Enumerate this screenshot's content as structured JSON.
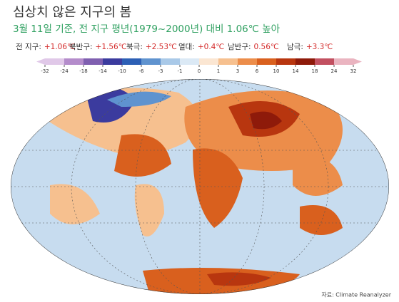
{
  "header": {
    "title": "심상치 않은 지구의 봄",
    "subtitle": "3월 11일 기준, 전 지구 평년(1979~2000년) 대비 1.06℃ 높아"
  },
  "stats": [
    {
      "label": "전 지구:",
      "value": "+1.06℃"
    },
    {
      "label": "북반구:",
      "value": "+1.56℃"
    },
    {
      "label": "북극:",
      "value": "+2.53℃"
    },
    {
      "label": "열대:",
      "value": "+0.4℃"
    },
    {
      "label": "남반구:",
      "value": "0.56℃"
    },
    {
      "label": "남극:",
      "value": "+3.3℃"
    }
  ],
  "colorbar": {
    "ticks": [
      -32,
      -24,
      -18,
      -14,
      -10,
      -6,
      -3,
      -1,
      0,
      1,
      3,
      6,
      10,
      14,
      18,
      24,
      32
    ],
    "colors": [
      "#e0c8e8",
      "#b48ccb",
      "#7f5fb0",
      "#3b3b9e",
      "#2c5fb5",
      "#5f93cf",
      "#a9c9e8",
      "#dbe9f5",
      "#fbe6d2",
      "#f6c08f",
      "#ec8d4a",
      "#d9601e",
      "#b8360f",
      "#8e1a0a",
      "#c25060",
      "#eab4c0"
    ]
  },
  "source": "자료: Climate Reanalyzer"
}
